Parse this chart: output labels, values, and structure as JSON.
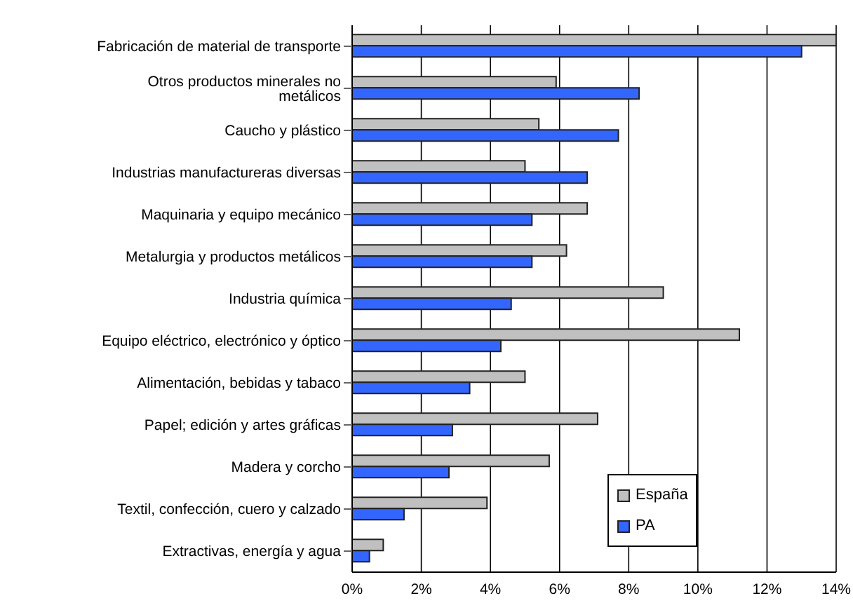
{
  "chart_data": {
    "type": "bar",
    "orientation": "horizontal",
    "categories": [
      "Fabricación de material de transporte",
      "Otros productos minerales no metálicos",
      "Caucho y plástico",
      "Industrias manufactureras diversas",
      "Maquinaria y equipo mecánico",
      "Metalurgia y productos metálicos",
      "Industria química",
      "Equipo eléctrico, electrónico y óptico",
      "Alimentación, bebidas y tabaco",
      "Papel; edición y artes gráficas",
      "Madera y corcho",
      "Textil, confección, cuero y calzado",
      "Extractivas, energía y agua"
    ],
    "series": [
      {
        "name": "España",
        "color": "#c0c0c0",
        "values": [
          14.0,
          5.9,
          5.4,
          5.0,
          6.8,
          6.2,
          9.0,
          11.2,
          5.0,
          7.1,
          5.7,
          3.9,
          0.9
        ]
      },
      {
        "name": "PA",
        "color": "#3366ff",
        "values": [
          13.0,
          8.3,
          7.7,
          6.8,
          5.2,
          5.2,
          4.6,
          4.3,
          3.4,
          2.9,
          2.8,
          1.5,
          0.5
        ]
      }
    ],
    "xlim": [
      0,
      14
    ],
    "xticks": [
      {
        "value": 0,
        "label": "0%"
      },
      {
        "value": 2,
        "label": "2%"
      },
      {
        "value": 4,
        "label": "4%"
      },
      {
        "value": 6,
        "label": "6%"
      },
      {
        "value": 8,
        "label": "8%"
      },
      {
        "value": 10,
        "label": "10%"
      },
      {
        "value": 12,
        "label": "12%"
      },
      {
        "value": 14,
        "label": "14%"
      }
    ],
    "grid": "x",
    "legend": "bottom right"
  }
}
